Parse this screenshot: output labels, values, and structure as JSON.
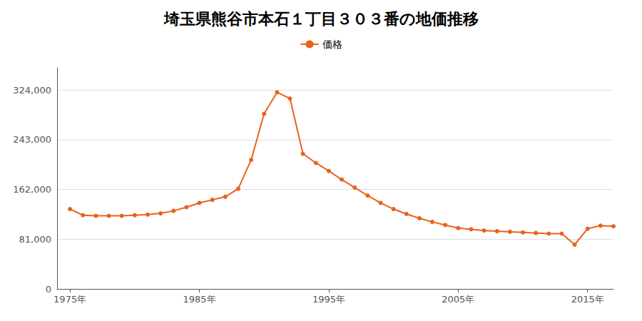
{
  "chart_data": {
    "type": "line",
    "title": "埼玉県熊谷市本石１丁目３０３番の地価推移",
    "x": [
      1975,
      1976,
      1977,
      1978,
      1979,
      1980,
      1981,
      1982,
      1983,
      1984,
      1985,
      1986,
      1987,
      1988,
      1989,
      1990,
      1991,
      1992,
      1993,
      1994,
      1995,
      1996,
      1997,
      1998,
      1999,
      2000,
      2001,
      2002,
      2003,
      2004,
      2005,
      2006,
      2007,
      2008,
      2009,
      2010,
      2011,
      2012,
      2013,
      2014,
      2015,
      2016,
      2017
    ],
    "series": [
      {
        "name": "価格",
        "color": "#e8621a",
        "values": [
          130000,
          120000,
          119000,
          119000,
          119000,
          120000,
          121000,
          123000,
          127000,
          133000,
          140000,
          145000,
          150000,
          163000,
          210000,
          285000,
          320000,
          310000,
          220000,
          205000,
          192000,
          178000,
          165000,
          152000,
          140000,
          130000,
          122000,
          115000,
          109000,
          104000,
          99000,
          97000,
          95000,
          94000,
          93000,
          92000,
          91000,
          90000,
          90000,
          72000,
          98000,
          103000,
          102000
        ]
      }
    ],
    "xlim": [
      1974,
      2017
    ],
    "xticks": [
      {
        "value": 1975,
        "label": "1975年"
      },
      {
        "value": 1985,
        "label": "1985年"
      },
      {
        "value": 1995,
        "label": "1995年"
      },
      {
        "value": 2005,
        "label": "2005年"
      },
      {
        "value": 2015,
        "label": "2015年"
      }
    ],
    "ylim": [
      0,
      360000
    ],
    "yticks": [
      0,
      {
        "value": 81000,
        "label": "81,000"
      },
      {
        "value": 162000,
        "label": "162,000"
      },
      {
        "value": 243000,
        "label": "243,000"
      },
      {
        "value": 324000,
        "label": "324,000"
      }
    ],
    "grid": true,
    "legend": "top",
    "marker": "circle"
  }
}
